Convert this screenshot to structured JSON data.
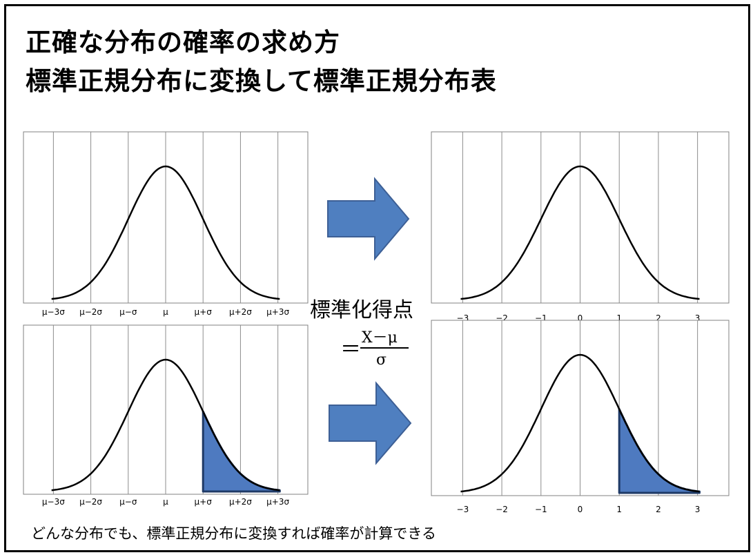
{
  "title": {
    "line1": "正確な分布の確率の求め方",
    "line2": "標準正規分布に変換して標準正規分布表"
  },
  "formula": {
    "label": "標準化得点",
    "equals": "＝",
    "numerator": "X－μ",
    "denominator": "σ"
  },
  "caption": "どんな分布でも、標準正規分布に変換すれば確率が計算できる",
  "colors": {
    "arrow_fill": "#4f7fc0",
    "arrow_stroke": "#3d5f95",
    "shade_fill": "#4e7ac0",
    "shade_stroke": "#1f3a66"
  },
  "chart_data": [
    {
      "type": "area",
      "panel": "original-top",
      "x_tick_labels": [
        "μ−3σ",
        "μ−2σ",
        "μ−σ",
        "μ",
        "μ+σ",
        "μ+2σ",
        "μ+3σ"
      ],
      "xlim": [
        -3.8,
        3.8
      ],
      "grid": true,
      "shaded_from": null
    },
    {
      "type": "area",
      "panel": "standard-top",
      "x_tick_labels": [
        "−3",
        "−2",
        "−1",
        "0",
        "1",
        "2",
        "3"
      ],
      "xlim": [
        -3.8,
        3.8
      ],
      "grid": true,
      "shaded_from": null
    },
    {
      "type": "area",
      "panel": "original-bottom",
      "x_tick_labels": [
        "μ−3σ",
        "μ−2σ",
        "μ−σ",
        "μ",
        "μ+σ",
        "μ+2σ",
        "μ+3σ"
      ],
      "xlim": [
        -3.8,
        3.8
      ],
      "grid": true,
      "shaded_from": 1
    },
    {
      "type": "area",
      "panel": "standard-bottom",
      "x_tick_labels": [
        "−3",
        "−2",
        "−1",
        "0",
        "1",
        "2",
        "3"
      ],
      "xlim": [
        -3.8,
        3.8
      ],
      "grid": true,
      "shaded_from": 1
    }
  ]
}
